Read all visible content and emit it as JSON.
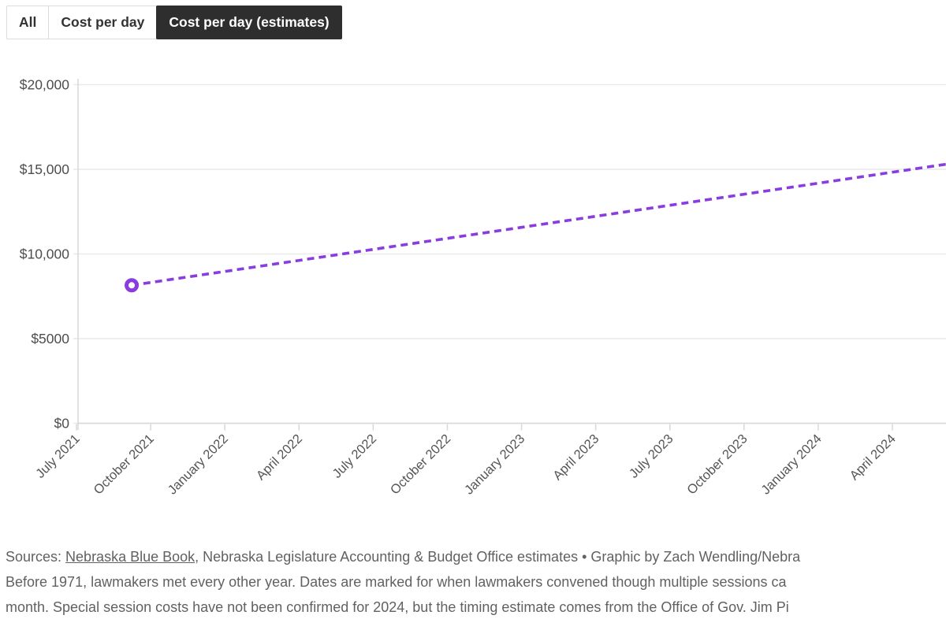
{
  "tabs": [
    {
      "label": "All",
      "active": false
    },
    {
      "label": "Cost per day",
      "active": false
    },
    {
      "label": "Cost per day (estimates)",
      "active": true
    }
  ],
  "chart_data": {
    "type": "line",
    "title": "",
    "series": [
      {
        "name": "Cost per day (estimates)",
        "color": "#8a3dde",
        "line_style": "dashed",
        "points": [
          {
            "x_label": "September 2021",
            "value": 8150,
            "x_frac": 0.0618,
            "marker": "open-circle"
          },
          {
            "x_label": "mid-2024 (line clipped at right edge of view)",
            "value": 15300,
            "x_frac": 1.0,
            "marker": "none"
          }
        ]
      }
    ],
    "x_axis": {
      "tick_labels": [
        "July 2021",
        "October 2021",
        "January 2022",
        "April 2022",
        "July 2022",
        "October 2022",
        "January 2023",
        "April 2023",
        "July 2023",
        "October 2023",
        "January 2024",
        "April 2024"
      ],
      "label_rotation_deg": 45
    },
    "y_axis": {
      "tick_labels": [
        "$0",
        "$5000",
        "$10,000",
        "$15,000",
        "$20,000"
      ],
      "tick_values": [
        0,
        5000,
        10000,
        15000,
        20000
      ],
      "max": 20000
    },
    "grid": true,
    "legend_position": "none"
  },
  "footer": {
    "sources_prefix": "Sources: ",
    "sources_link": "Nebraska Blue Book",
    "sources_suffix": ", Nebraska Legislature Accounting & Budget Office estimates • Graphic by Zach Wendling/Nebra",
    "note_line_2": "Before 1971, lawmakers met every other year. Dates are marked for when lawmakers convened though multiple sessions ca",
    "note_line_3": "month. Special session costs have not been confirmed for 2024, but the timing estimate comes from the Office of Gov. Jim Pi"
  },
  "colors": {
    "accent_purple": "#8a3dde",
    "active_tab_bg": "#2e2e2e",
    "grid_line": "#e9e9e9",
    "axis_line": "#d8d8d8",
    "tick_text": "#4d4d4d",
    "footer_text": "#616161"
  }
}
